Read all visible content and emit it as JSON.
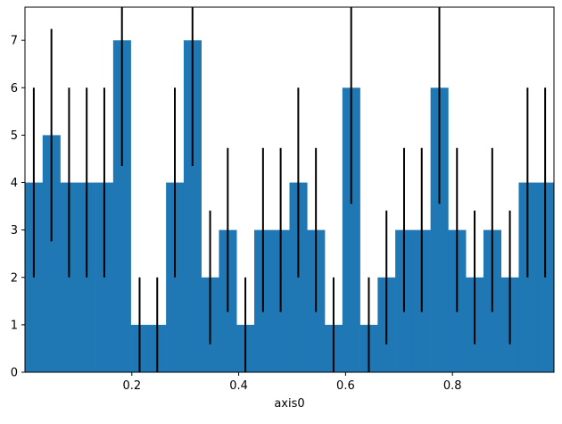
{
  "chart_data": {
    "type": "bar",
    "title": "",
    "xlabel": "axis0",
    "ylabel": "",
    "xlim": [
      0.0,
      0.99
    ],
    "ylim": [
      0,
      7.7
    ],
    "x_ticks": [
      0.2,
      0.4,
      0.6,
      0.8
    ],
    "x_tick_labels": [
      "0.2",
      "0.4",
      "0.6",
      "0.8"
    ],
    "y_ticks": [
      0,
      1,
      2,
      3,
      4,
      5,
      6,
      7
    ],
    "y_tick_labels": [
      "0",
      "1",
      "2",
      "3",
      "4",
      "5",
      "6",
      "7"
    ],
    "grid": false,
    "bar_color": "#1f77b4",
    "errorbar_color": "#000000",
    "bin_start": 0.0,
    "bin_width": 0.033,
    "values": [
      4,
      5,
      4,
      4,
      4,
      7,
      1,
      1,
      4,
      7,
      2,
      3,
      1,
      3,
      3,
      4,
      3,
      1,
      6,
      1,
      2,
      3,
      3,
      6,
      3,
      2,
      3,
      2,
      4,
      4
    ],
    "error_low": [
      2.0,
      2.76,
      2.0,
      2.0,
      2.0,
      4.35,
      0.0,
      0.0,
      2.0,
      4.35,
      0.59,
      1.27,
      0.0,
      1.27,
      1.27,
      2.0,
      1.27,
      0.0,
      3.55,
      0.0,
      0.59,
      1.27,
      1.27,
      3.55,
      1.27,
      0.59,
      1.27,
      0.59,
      2.0,
      2.0
    ],
    "error_high": [
      6.0,
      7.24,
      6.0,
      6.0,
      6.0,
      9.65,
      2.0,
      2.0,
      6.0,
      9.65,
      3.41,
      4.73,
      2.0,
      4.73,
      4.73,
      6.0,
      4.73,
      2.0,
      8.45,
      2.0,
      3.41,
      4.73,
      4.73,
      8.45,
      4.73,
      3.41,
      4.73,
      3.41,
      6.0,
      6.0
    ]
  }
}
